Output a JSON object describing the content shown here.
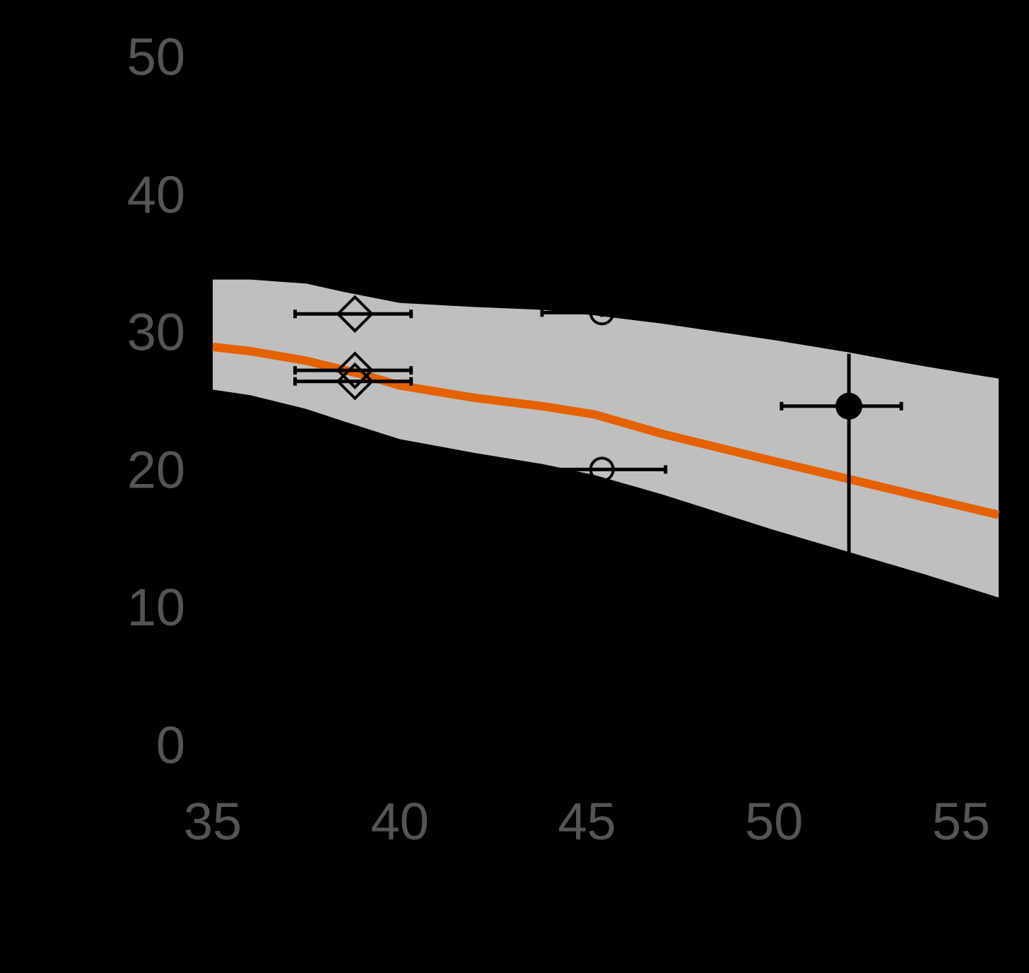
{
  "chart_data": {
    "type": "line",
    "title": "",
    "xlabel": "",
    "ylabel": "",
    "xlim": [
      34.1,
      56.5
    ],
    "ylim": [
      -1.5,
      54.8
    ],
    "x_ticks": [
      "35",
      "40",
      "45",
      "50",
      "55"
    ],
    "y_ticks": [
      "0",
      "10",
      "20",
      "30",
      "40",
      "50"
    ],
    "grid": false,
    "colors": {
      "background": "#000000",
      "band": "#bfbfbf",
      "fit_line": "#e66100",
      "markers": "#000000",
      "tick_labels": "#555555"
    },
    "series": [
      {
        "type": "line",
        "x": [
          35,
          36,
          37.5,
          39,
          40,
          42,
          43.8,
          45.2,
          47,
          50,
          52,
          54,
          56
        ],
        "y": [
          28.9,
          28.6,
          27.9,
          26.9,
          26.1,
          25.2,
          24.6,
          24.0,
          22.6,
          20.6,
          19.3,
          18.0,
          16.7
        ]
      },
      {
        "type": "band",
        "x": [
          35,
          36,
          37.5,
          38.5,
          40,
          42,
          43.8,
          45.2,
          47,
          50,
          52,
          54,
          56
        ],
        "upper": [
          33.8,
          33.8,
          33.5,
          32.9,
          32.1,
          31.8,
          31.6,
          31.2,
          30.6,
          29.4,
          28.5,
          27.5,
          26.6
        ],
        "lower": [
          25.8,
          25.4,
          24.4,
          23.5,
          22.2,
          21.2,
          20.4,
          19.6,
          18.2,
          15.6,
          14.0,
          12.4,
          10.7
        ]
      },
      {
        "type": "errorbar",
        "marker": "diamond",
        "points": [
          {
            "x": 38.8,
            "y": 31.3,
            "xerr": [
              37.2,
              40.3
            ]
          },
          {
            "x": 38.8,
            "y": 27.2,
            "xerr": [
              37.2,
              40.3
            ]
          },
          {
            "x": 38.8,
            "y": 26.4,
            "xerr": [
              37.2,
              40.3
            ]
          }
        ]
      },
      {
        "type": "errorbar",
        "marker": "open-circle",
        "points": [
          {
            "x": 45.4,
            "y": 31.4,
            "xerr": [
              43.8,
              45.4
            ]
          },
          {
            "x": 45.4,
            "y": 20.0,
            "xerr": [
              43.8,
              47.1
            ]
          }
        ]
      },
      {
        "type": "errorbar",
        "marker": "filled-circle",
        "points": [
          {
            "x": 52.0,
            "y": 24.6,
            "xerr": [
              50.2,
              53.4
            ],
            "yerr": [
              13.9,
              28.4
            ]
          }
        ]
      }
    ]
  }
}
